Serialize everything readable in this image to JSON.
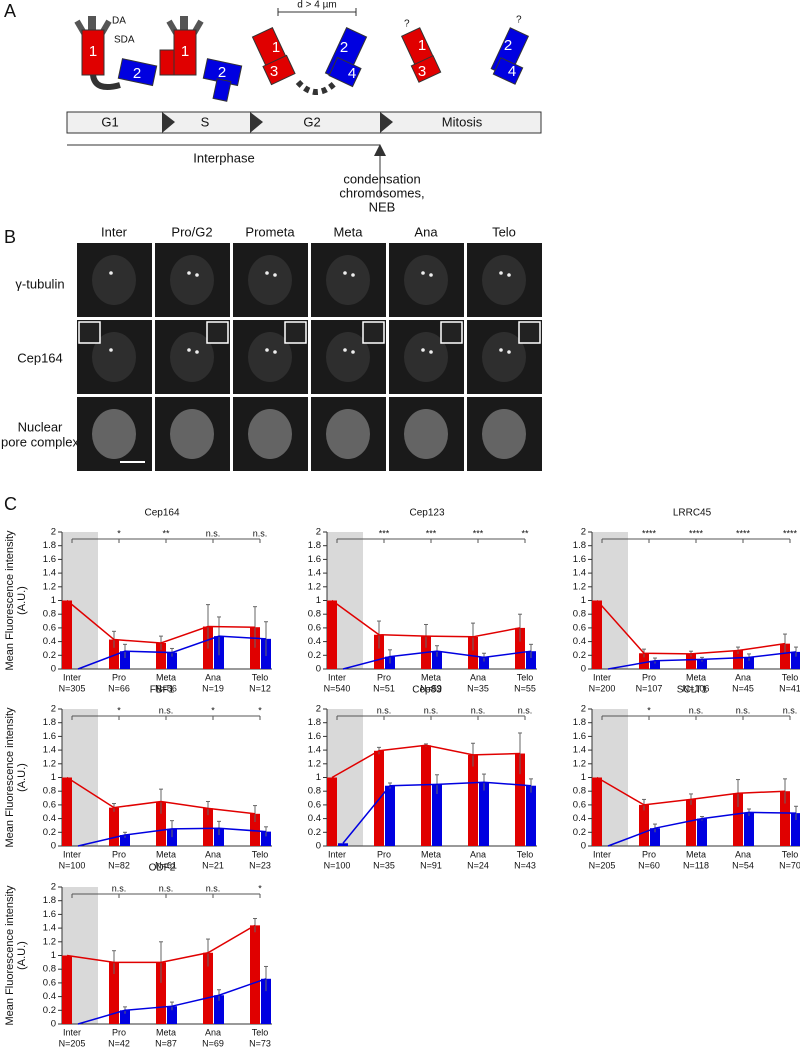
{
  "panel_labels": [
    "A",
    "B",
    "C"
  ],
  "diagram": {
    "annotations": {
      "da": "DA",
      "sda": "SDA",
      "distance": "d > 4 µm",
      "q1": "?",
      "q2": "?"
    },
    "centriole_labels": [
      "1",
      "2",
      "1",
      "2",
      "1",
      "3",
      "2",
      "4",
      "1",
      "3",
      "2",
      "4"
    ],
    "phases": [
      "G1",
      "S",
      "G2",
      "Mitosis"
    ],
    "interphase": "Interphase",
    "event": [
      "condensation",
      "chromosomes,",
      "NEB"
    ]
  },
  "microscopy": {
    "columns": [
      "Inter",
      "Pro/G2",
      "Prometa",
      "Meta",
      "Ana",
      "Telo"
    ],
    "rows": [
      [
        "γ-tubulin"
      ],
      [
        "Cep164"
      ],
      [
        "Nuclear",
        "pore complex"
      ]
    ]
  },
  "chart_data": [
    {
      "type": "bar",
      "title": "Cep164",
      "ylabel": [
        "Mean Fluorescence intensity",
        "(A.U.)"
      ],
      "categories": [
        "Inter",
        "Pro",
        "Meta",
        "Ana",
        "Telo"
      ],
      "n_labels": [
        "N=305",
        "N=66",
        "N=56",
        "N=19",
        "N=12"
      ],
      "significance": [
        "*",
        "**",
        "n.s.",
        "n.s."
      ],
      "series": [
        {
          "color": "#e00000",
          "values": [
            1,
            0.43,
            0.38,
            0.62,
            0.61
          ],
          "errors": [
            0,
            0.12,
            0.1,
            0.32,
            0.3
          ]
        },
        {
          "color": "#0000e0",
          "values": [
            0,
            0.26,
            0.24,
            0.48,
            0.44
          ],
          "errors": [
            0,
            0.1,
            0.06,
            0.28,
            0.25
          ]
        }
      ],
      "ylim": [
        0,
        2
      ],
      "yticks": [
        0,
        0.2,
        0.4,
        0.6,
        0.8,
        1,
        1.2,
        1.4,
        1.6,
        1.8,
        2
      ]
    },
    {
      "type": "bar",
      "title": "Cep123",
      "categories": [
        "Inter",
        "Pro",
        "Meta",
        "Ana",
        "Telo"
      ],
      "n_labels": [
        "N=540",
        "N=51",
        "N=59",
        "N=35",
        "N=55"
      ],
      "significance": [
        "***",
        "***",
        "***",
        "**"
      ],
      "series": [
        {
          "color": "#e00000",
          "values": [
            1,
            0.5,
            0.48,
            0.47,
            0.6
          ],
          "errors": [
            0,
            0.2,
            0.17,
            0.2,
            0.2
          ]
        },
        {
          "color": "#0000e0",
          "values": [
            0,
            0.18,
            0.26,
            0.17,
            0.26
          ],
          "errors": [
            0,
            0.1,
            0.08,
            0.06,
            0.1
          ]
        }
      ],
      "ylim": [
        0,
        2
      ],
      "yticks": [
        0,
        0.2,
        0.4,
        0.6,
        0.8,
        1,
        1.2,
        1.4,
        1.6,
        1.8,
        2
      ]
    },
    {
      "type": "bar",
      "title": "LRRC45",
      "categories": [
        "Inter",
        "Pro",
        "Meta",
        "Ana",
        "Telo"
      ],
      "n_labels": [
        "N=200",
        "N=107",
        "N=106",
        "N=45",
        "N=41"
      ],
      "significance": [
        "****",
        "****",
        "****",
        "****"
      ],
      "series": [
        {
          "color": "#e00000",
          "values": [
            1,
            0.23,
            0.22,
            0.27,
            0.37
          ],
          "errors": [
            0,
            0.06,
            0.04,
            0.05,
            0.14
          ]
        },
        {
          "color": "#0000e0",
          "values": [
            0,
            0.12,
            0.14,
            0.17,
            0.25
          ],
          "errors": [
            0,
            0.04,
            0.03,
            0.05,
            0.07
          ]
        }
      ],
      "ylim": [
        0,
        2
      ],
      "yticks": [
        0,
        0.2,
        0.4,
        0.6,
        0.8,
        1,
        1.2,
        1.4,
        1.6,
        1.8,
        2
      ]
    },
    {
      "type": "bar",
      "title": "FBF1",
      "ylabel": [
        "Mean Fluorescence intensity",
        "(A.U.)"
      ],
      "categories": [
        "Inter",
        "Pro",
        "Meta",
        "Ana",
        "Telo"
      ],
      "n_labels": [
        "N=100",
        "N=82",
        "N=61",
        "N=21",
        "N=23"
      ],
      "significance": [
        "*",
        "n.s.",
        "*",
        "*"
      ],
      "series": [
        {
          "color": "#e00000",
          "values": [
            1,
            0.56,
            0.65,
            0.55,
            0.47
          ],
          "errors": [
            0,
            0.06,
            0.18,
            0.1,
            0.12
          ]
        },
        {
          "color": "#0000e0",
          "values": [
            0,
            0.16,
            0.25,
            0.26,
            0.21
          ],
          "errors": [
            0,
            0.04,
            0.12,
            0.1,
            0.07
          ]
        }
      ],
      "ylim": [
        0,
        2
      ],
      "yticks": [
        0,
        0.2,
        0.4,
        0.6,
        0.8,
        1,
        1.2,
        1.4,
        1.6,
        1.8,
        2
      ]
    },
    {
      "type": "bar",
      "title": "Cep83",
      "categories": [
        "Inter",
        "Pro",
        "Meta",
        "Ana",
        "Telo"
      ],
      "n_labels": [
        "N=100",
        "N=35",
        "N=91",
        "N=24",
        "N=43"
      ],
      "significance": [
        "n.s.",
        "n.s.",
        "n.s.",
        "n.s."
      ],
      "series": [
        {
          "color": "#e00000",
          "values": [
            1,
            1.39,
            1.47,
            1.33,
            1.35
          ],
          "errors": [
            0,
            0.05,
            0.02,
            0.17,
            0.3
          ]
        },
        {
          "color": "#0000e0",
          "values": [
            0.04,
            0.88,
            0.9,
            0.93,
            0.88
          ],
          "errors": [
            0,
            0.04,
            0.14,
            0.12,
            0.1
          ]
        }
      ],
      "ylim": [
        0,
        2
      ],
      "yticks": [
        0,
        0.2,
        0.4,
        0.6,
        0.8,
        1,
        1.2,
        1.4,
        1.6,
        1.8,
        2
      ]
    },
    {
      "type": "bar",
      "title": "SCLT1",
      "categories": [
        "Inter",
        "Pro",
        "Meta",
        "Ana",
        "Telo"
      ],
      "n_labels": [
        "N=205",
        "N=60",
        "N=118",
        "N=54",
        "N=70"
      ],
      "significance": [
        "*",
        "n.s.",
        "n.s.",
        "n.s."
      ],
      "series": [
        {
          "color": "#e00000",
          "values": [
            1,
            0.6,
            0.68,
            0.77,
            0.8
          ],
          "errors": [
            0,
            0.08,
            0.08,
            0.2,
            0.18
          ]
        },
        {
          "color": "#0000e0",
          "values": [
            0,
            0.26,
            0.4,
            0.49,
            0.48
          ],
          "errors": [
            0,
            0.06,
            0.03,
            0.05,
            0.1
          ]
        }
      ],
      "ylim": [
        0,
        2
      ],
      "yticks": [
        0,
        0.2,
        0.4,
        0.6,
        0.8,
        1,
        1.2,
        1.4,
        1.6,
        1.8,
        2
      ]
    },
    {
      "type": "bar",
      "title": "ODF2",
      "ylabel": [
        "Mean Fluorescence intensity",
        "(A.U.)"
      ],
      "categories": [
        "Inter",
        "Pro",
        "Meta",
        "Ana",
        "Telo"
      ],
      "n_labels": [
        "N=205",
        "N=42",
        "N=87",
        "N=69",
        "N=73"
      ],
      "significance": [
        "n.s.",
        "n.s.",
        "n.s.",
        "*"
      ],
      "series": [
        {
          "color": "#e00000",
          "values": [
            1,
            0.9,
            0.9,
            1.04,
            1.44
          ],
          "errors": [
            0,
            0.17,
            0.3,
            0.2,
            0.1
          ]
        },
        {
          "color": "#0000e0",
          "values": [
            0,
            0.2,
            0.26,
            0.42,
            0.66
          ],
          "errors": [
            0,
            0.05,
            0.06,
            0.08,
            0.18
          ]
        }
      ],
      "ylim": [
        0,
        2
      ],
      "yticks": [
        0,
        0.2,
        0.4,
        0.6,
        0.8,
        1,
        1.2,
        1.4,
        1.6,
        1.8,
        2
      ]
    }
  ]
}
